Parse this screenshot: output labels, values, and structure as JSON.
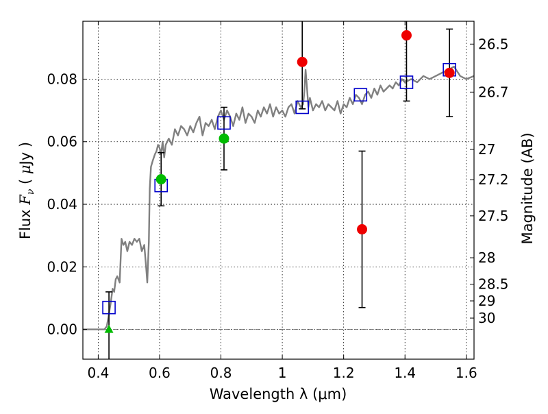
{
  "chart_data": {
    "type": "scatter",
    "title": "",
    "xlabel": "Wavelength  λ (μm)",
    "ylabel": "Flux  F_ν  ( μJy )",
    "ylabel_parts": [
      "Flux  ",
      "F",
      "ν",
      "  ( ",
      "μ",
      "Jy )"
    ],
    "y2label": "Magnitude (AB)",
    "xlim": [
      0.35,
      1.625
    ],
    "ylim": [
      -0.0095,
      0.0985
    ],
    "grid": true,
    "x_ticks": [
      0.4,
      0.6,
      0.8,
      1.0,
      1.2,
      1.4,
      1.6
    ],
    "x_tick_labels": [
      "0.4",
      "0.6",
      "0.8",
      "1",
      "1.2",
      "1.4",
      "1.6"
    ],
    "y_ticks": [
      0.0,
      0.02,
      0.04,
      0.06,
      0.08
    ],
    "y_tick_labels": [
      "0.00",
      "0.02",
      "0.04",
      "0.06",
      "0.08"
    ],
    "mag_ticks": [
      {
        "label": "26.5",
        "mag": 26.5
      },
      {
        "label": "26.7",
        "mag": 26.7
      },
      {
        "label": "27",
        "mag": 27.0
      },
      {
        "label": "27.2",
        "mag": 27.2
      },
      {
        "label": "27.5",
        "mag": 27.5
      },
      {
        "label": "28",
        "mag": 28.0
      },
      {
        "label": "28.5",
        "mag": 28.5
      },
      {
        "label": "29",
        "mag": 29.0
      },
      {
        "label": "30",
        "mag": 30.0
      }
    ],
    "colors": {
      "model": "#808080",
      "model_fluxes": "#0000cc",
      "green_points": "#00bb00",
      "red_points": "#ee0000",
      "errorbars": "#000000"
    },
    "series": [
      {
        "kind": "model_spectrum",
        "x": [
          0.35,
          0.42,
          0.428,
          0.435,
          0.44,
          0.447,
          0.452,
          0.457,
          0.462,
          0.47,
          0.476,
          0.482,
          0.488,
          0.495,
          0.502,
          0.51,
          0.518,
          0.526,
          0.534,
          0.542,
          0.55,
          0.556,
          0.56,
          0.565,
          0.568,
          0.572,
          0.578,
          0.585,
          0.59,
          0.595,
          0.6,
          0.605,
          0.61,
          0.615,
          0.62,
          0.63,
          0.64,
          0.65,
          0.66,
          0.67,
          0.68,
          0.69,
          0.7,
          0.71,
          0.72,
          0.73,
          0.74,
          0.75,
          0.76,
          0.77,
          0.78,
          0.79,
          0.8,
          0.81,
          0.82,
          0.83,
          0.84,
          0.85,
          0.86,
          0.87,
          0.88,
          0.89,
          0.9,
          0.91,
          0.92,
          0.93,
          0.94,
          0.95,
          0.96,
          0.97,
          0.98,
          0.99,
          1.0,
          1.01,
          1.02,
          1.03,
          1.04,
          1.05,
          1.06,
          1.068,
          1.072,
          1.076,
          1.08,
          1.085,
          1.09,
          1.1,
          1.11,
          1.12,
          1.13,
          1.14,
          1.15,
          1.16,
          1.17,
          1.18,
          1.19,
          1.2,
          1.21,
          1.22,
          1.23,
          1.24,
          1.25,
          1.26,
          1.27,
          1.28,
          1.29,
          1.3,
          1.31,
          1.32,
          1.33,
          1.34,
          1.35,
          1.36,
          1.37,
          1.38,
          1.39,
          1.4,
          1.42,
          1.44,
          1.46,
          1.48,
          1.5,
          1.52,
          1.54,
          1.56,
          1.58,
          1.6,
          1.625
        ],
        "y": [
          0.0,
          0.0,
          0.001,
          0.005,
          0.008,
          0.013,
          0.012,
          0.016,
          0.017,
          0.015,
          0.029,
          0.027,
          0.028,
          0.025,
          0.028,
          0.027,
          0.029,
          0.028,
          0.029,
          0.025,
          0.027,
          0.02,
          0.015,
          0.028,
          0.045,
          0.052,
          0.054,
          0.056,
          0.057,
          0.059,
          0.058,
          0.056,
          0.06,
          0.055,
          0.059,
          0.061,
          0.059,
          0.064,
          0.062,
          0.065,
          0.064,
          0.062,
          0.065,
          0.063,
          0.066,
          0.068,
          0.062,
          0.066,
          0.065,
          0.067,
          0.064,
          0.068,
          0.07,
          0.067,
          0.07,
          0.068,
          0.065,
          0.069,
          0.067,
          0.071,
          0.066,
          0.069,
          0.068,
          0.066,
          0.07,
          0.068,
          0.071,
          0.069,
          0.072,
          0.068,
          0.071,
          0.069,
          0.07,
          0.068,
          0.071,
          0.072,
          0.069,
          0.073,
          0.071,
          0.072,
          0.076,
          0.083,
          0.078,
          0.071,
          0.074,
          0.07,
          0.072,
          0.071,
          0.073,
          0.07,
          0.072,
          0.071,
          0.07,
          0.073,
          0.069,
          0.072,
          0.071,
          0.074,
          0.072,
          0.075,
          0.074,
          0.072,
          0.075,
          0.076,
          0.074,
          0.077,
          0.075,
          0.078,
          0.076,
          0.077,
          0.078,
          0.077,
          0.079,
          0.078,
          0.08,
          0.079,
          0.08,
          0.079,
          0.081,
          0.08,
          0.081,
          0.082,
          0.083,
          0.084,
          0.081,
          0.08,
          0.081
        ]
      },
      {
        "kind": "model_fluxes",
        "marker": "open-square",
        "x": [
          0.435,
          0.605,
          0.81,
          1.065,
          1.255,
          1.405,
          1.545
        ],
        "y": [
          0.007,
          0.046,
          0.066,
          0.071,
          0.075,
          0.079,
          0.083
        ]
      },
      {
        "kind": "detections_green",
        "marker": "circle",
        "x": [
          0.605,
          0.81
        ],
        "y": [
          0.048,
          0.061
        ],
        "yerr": [
          0.0085,
          0.01
        ]
      },
      {
        "kind": "upper_limit_green",
        "marker": "triangle-up",
        "x": [
          0.435
        ],
        "y": [
          0.0
        ],
        "yerr": [
          0.012
        ]
      },
      {
        "kind": "detections_red",
        "marker": "circle",
        "x": [
          1.065,
          1.26,
          1.405,
          1.545
        ],
        "y": [
          0.0855,
          0.032,
          0.094,
          0.082
        ],
        "yerr": [
          0.015,
          0.025,
          0.021,
          0.014
        ]
      }
    ]
  }
}
